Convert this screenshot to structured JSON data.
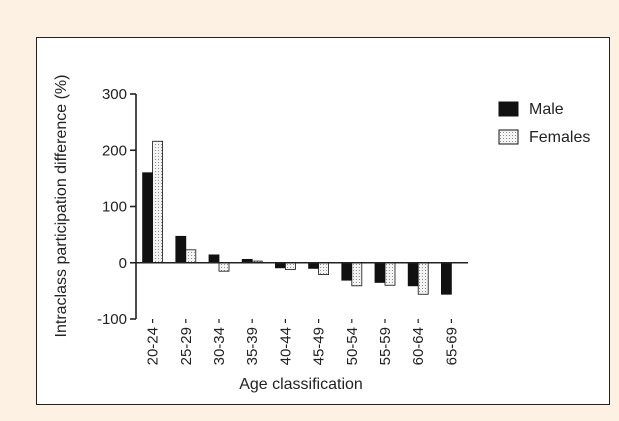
{
  "chart_data": {
    "type": "bar",
    "categories": [
      "20-24",
      "25-29",
      "30-34",
      "35-39",
      "40-44",
      "45-49",
      "50-54",
      "55-59",
      "60-64",
      "65-69"
    ],
    "series": [
      {
        "name": "Male",
        "values": [
          160,
          47,
          14,
          6,
          -9,
          -10,
          -31,
          -35,
          -41,
          -56
        ]
      },
      {
        "name": "Females",
        "values": [
          216,
          23,
          -15,
          3,
          -12,
          -21,
          -41,
          -40,
          -56,
          null
        ]
      }
    ],
    "xlabel": "Age classification",
    "ylabel": "Intraclass participation difference (%)",
    "ylim": [
      -100,
      300
    ],
    "yticks": [
      -100,
      0,
      100,
      200,
      300
    ],
    "ytick_labels": [
      "-100",
      "0",
      "100",
      "200",
      "300"
    ],
    "legend_position": "right",
    "grid": false,
    "colors": {
      "male": "#111111",
      "females": "#ececec",
      "background": "#fdf1e3"
    }
  }
}
